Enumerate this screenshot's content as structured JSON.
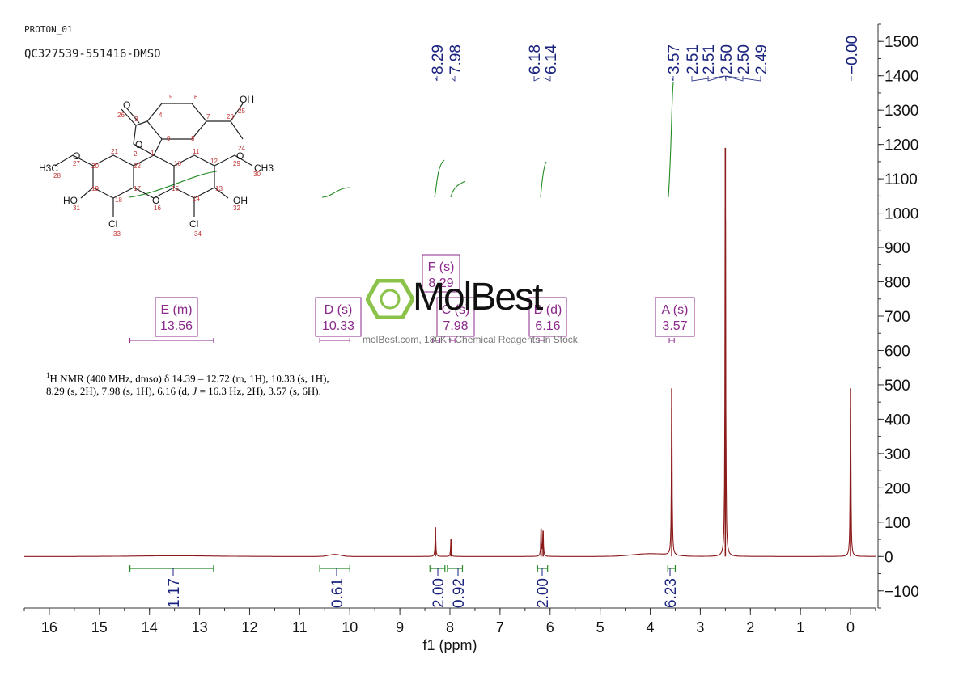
{
  "header": {
    "experiment": "PROTON_01",
    "sample": "QC327539-551416-DMSO"
  },
  "summary": {
    "nucleus_sup": "1",
    "text_a": "H NMR (400 MHz, dmso) δ 14.39 – 12.72 (m, 1H), 10.33 (s, 1H), 8.29 (s, 2H), 7.98 (s, 1H), 6.16 (d, ",
    "j_symbol": "J",
    "text_b": " = 16.3 Hz, 2H), 3.57 (s, 6H)."
  },
  "watermark": {
    "brand": "MolBest",
    "tagline": "molBest.com, 180K+ Chemical Reagents In Stock."
  },
  "colors": {
    "spectrum": "#8b1a1a",
    "integral": "#228b22",
    "label": "#1a237e",
    "multiplet": "#8b2a8b",
    "structure": "#c03030"
  },
  "structure": {
    "atoms": [
      "O",
      "O",
      "O",
      "O",
      "O",
      "OH",
      "HO",
      "HO",
      "OH",
      "Cl",
      "Cl"
    ],
    "numbers": [
      "1",
      "2",
      "3",
      "4",
      "5",
      "6",
      "7",
      "8",
      "9",
      "10",
      "11",
      "12",
      "13",
      "14",
      "15",
      "16",
      "17",
      "18",
      "19",
      "20",
      "21",
      "22",
      "23",
      "24",
      "25",
      "26",
      "27",
      "28",
      "29",
      "30",
      "31",
      "32",
      "33",
      "34"
    ]
  },
  "chart_data": {
    "type": "line",
    "xlabel": "f1 (ppm)",
    "xlim": [
      16.5,
      -0.5
    ],
    "ylim": [
      -150,
      1550
    ],
    "x_ticks": [
      16,
      15,
      14,
      13,
      12,
      11,
      10,
      9,
      8,
      7,
      6,
      5,
      4,
      3,
      2,
      1,
      0
    ],
    "y_ticks": [
      -100,
      0,
      100,
      200,
      300,
      400,
      500,
      600,
      700,
      800,
      900,
      1000,
      1100,
      1200,
      1300,
      1400,
      1500
    ],
    "peak_labels": [
      "8.29",
      "7.98",
      "6.18",
      "6.14",
      "3.57",
      "2.51",
      "2.51",
      "2.50",
      "2.50",
      "2.49",
      "-0.00"
    ],
    "peaks": [
      {
        "ppm": 8.29,
        "height": 85
      },
      {
        "ppm": 7.98,
        "height": 50
      },
      {
        "ppm": 6.18,
        "height": 80
      },
      {
        "ppm": 6.14,
        "height": 75
      },
      {
        "ppm": 3.57,
        "height": 490
      },
      {
        "ppm": 2.5,
        "height": 1190
      },
      {
        "ppm": 0.0,
        "height": 490
      }
    ],
    "multiplets": [
      {
        "label": "E (m)",
        "shift": "13.56",
        "from": 14.39,
        "to": 12.72
      },
      {
        "label": "D (s)",
        "shift": "10.33",
        "from": 10.6,
        "to": 10.0
      },
      {
        "label": "F (s)",
        "shift": "8.29",
        "from": 8.35,
        "to": 8.2
      },
      {
        "label": "C (s)",
        "shift": "7.98",
        "from": 8.0,
        "to": 7.9
      },
      {
        "label": "B (d)",
        "shift": "6.16",
        "from": 6.22,
        "to": 6.1
      },
      {
        "label": "A (s)",
        "shift": "3.57",
        "from": 3.62,
        "to": 3.52
      }
    ],
    "integrals": [
      {
        "value": "1.17",
        "from": 14.39,
        "to": 12.72
      },
      {
        "value": "0.61",
        "from": 10.6,
        "to": 10.0
      },
      {
        "value": "2.00",
        "from": 8.4,
        "to": 8.1
      },
      {
        "value": "0.92",
        "from": 8.05,
        "to": 7.75
      },
      {
        "value": "2.00",
        "from": 6.25,
        "to": 6.05
      },
      {
        "value": "6.23",
        "from": 3.65,
        "to": 3.5
      }
    ]
  }
}
